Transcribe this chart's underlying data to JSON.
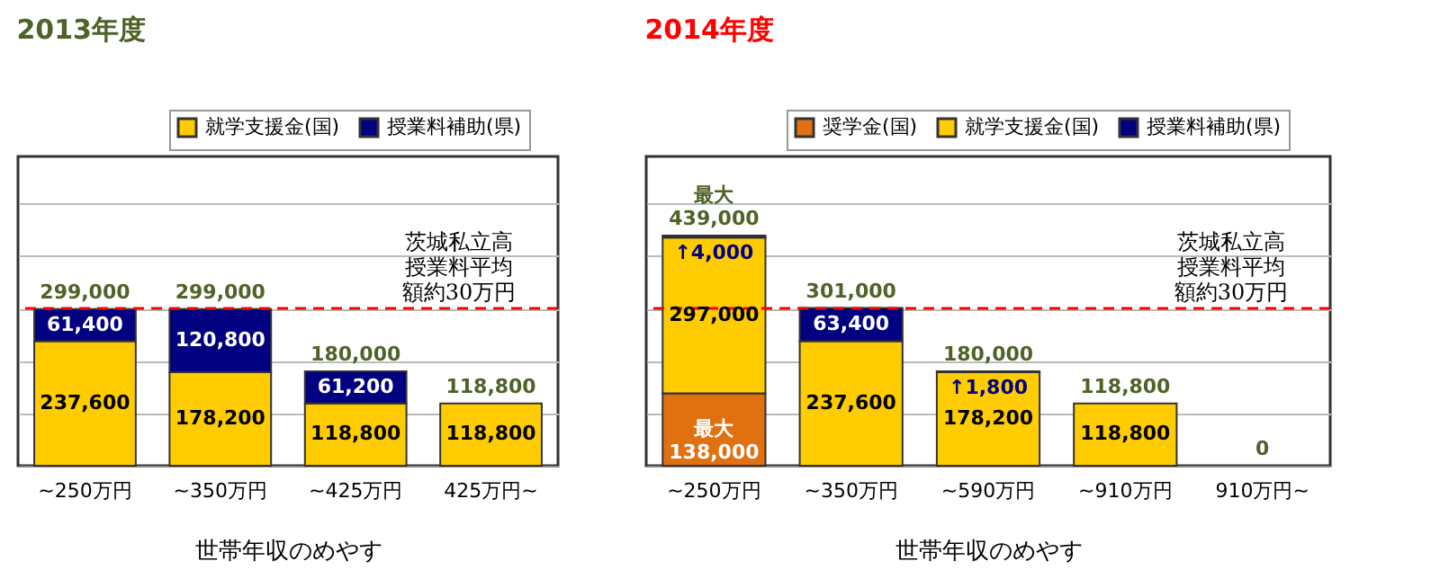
{
  "chart_data": [
    {
      "type": "bar",
      "stacked": true,
      "title": "2013年度",
      "xlabel": "世帯年収のめやす",
      "categories": [
        "~250万円",
        "~350万円",
        "~425万円",
        "425万円~"
      ],
      "series": [
        {
          "name": "就学支援金(国)",
          "color": "#ffcc00",
          "values": [
            237600,
            178200,
            118800,
            118800
          ],
          "value_labels": [
            "237,600",
            "178,200",
            "118,800",
            "118,800"
          ]
        },
        {
          "name": "授業料補助(県)",
          "color": "#000080",
          "values": [
            61400,
            120800,
            61200,
            null
          ],
          "value_labels": [
            "61,400",
            "120,800",
            "61,200",
            null
          ]
        }
      ],
      "totals": [
        "299,000",
        "299,000",
        "180,000",
        "118,800"
      ],
      "ylim": [
        0,
        590000
      ],
      "yticks": [
        {
          "value": 100000,
          "label": null
        },
        {
          "value": 200000,
          "label": null
        },
        {
          "value": 300000,
          "label": null
        },
        {
          "value": 400000,
          "label": null
        },
        {
          "value": 500000,
          "label": null
        }
      ],
      "tick_labels": "x",
      "grid": "y",
      "legend": "top right",
      "ref_lines": [
        {
          "axis": "y",
          "value": 300000,
          "label": "茨城私立高授業料平均額約30万円",
          "color": "#ff0000",
          "line_style": "dashed"
        }
      ]
    },
    {
      "type": "bar",
      "stacked": true,
      "title": "2014年度",
      "xlabel": "世帯年収のめやす",
      "categories": [
        "~250万円",
        "~350万円",
        "~590万円",
        "~910万円",
        "910万円~"
      ],
      "series": [
        {
          "name": "奨学金(国)",
          "color": "#e07010",
          "values": [
            138000,
            null,
            null,
            null,
            null
          ],
          "value_labels": [
            "最大\n138,000",
            null,
            null,
            null,
            null
          ]
        },
        {
          "name": "就学支援金(国)",
          "color": "#ffcc00",
          "values": [
            297000,
            237600,
            178200,
            118800,
            null
          ],
          "value_labels": [
            "297,000",
            "237,600",
            "178,200",
            "118,800",
            null
          ]
        },
        {
          "name": "授業料補助(県)",
          "color": "#000080",
          "values": [
            4000,
            63400,
            1800,
            null,
            null
          ],
          "value_labels": [
            "↑4,000",
            "63,400",
            "↑1,800",
            null,
            null
          ]
        }
      ],
      "totals": [
        "最大\n439,000",
        "301,000",
        "180,000",
        "118,800",
        "0"
      ],
      "ylim": [
        0,
        590000
      ],
      "yticks": [
        {
          "value": 100000,
          "label": null
        },
        {
          "value": 200000,
          "label": null
        },
        {
          "value": 300000,
          "label": null
        },
        {
          "value": 400000,
          "label": null
        },
        {
          "value": 500000,
          "label": null
        }
      ],
      "tick_labels": "x",
      "grid": "y",
      "legend": "top right",
      "ref_lines": [
        {
          "axis": "y",
          "value": 300000,
          "label": "茨城私立高授業料平均額約30万円",
          "color": "#ff0000",
          "line_style": "dashed"
        }
      ]
    }
  ]
}
